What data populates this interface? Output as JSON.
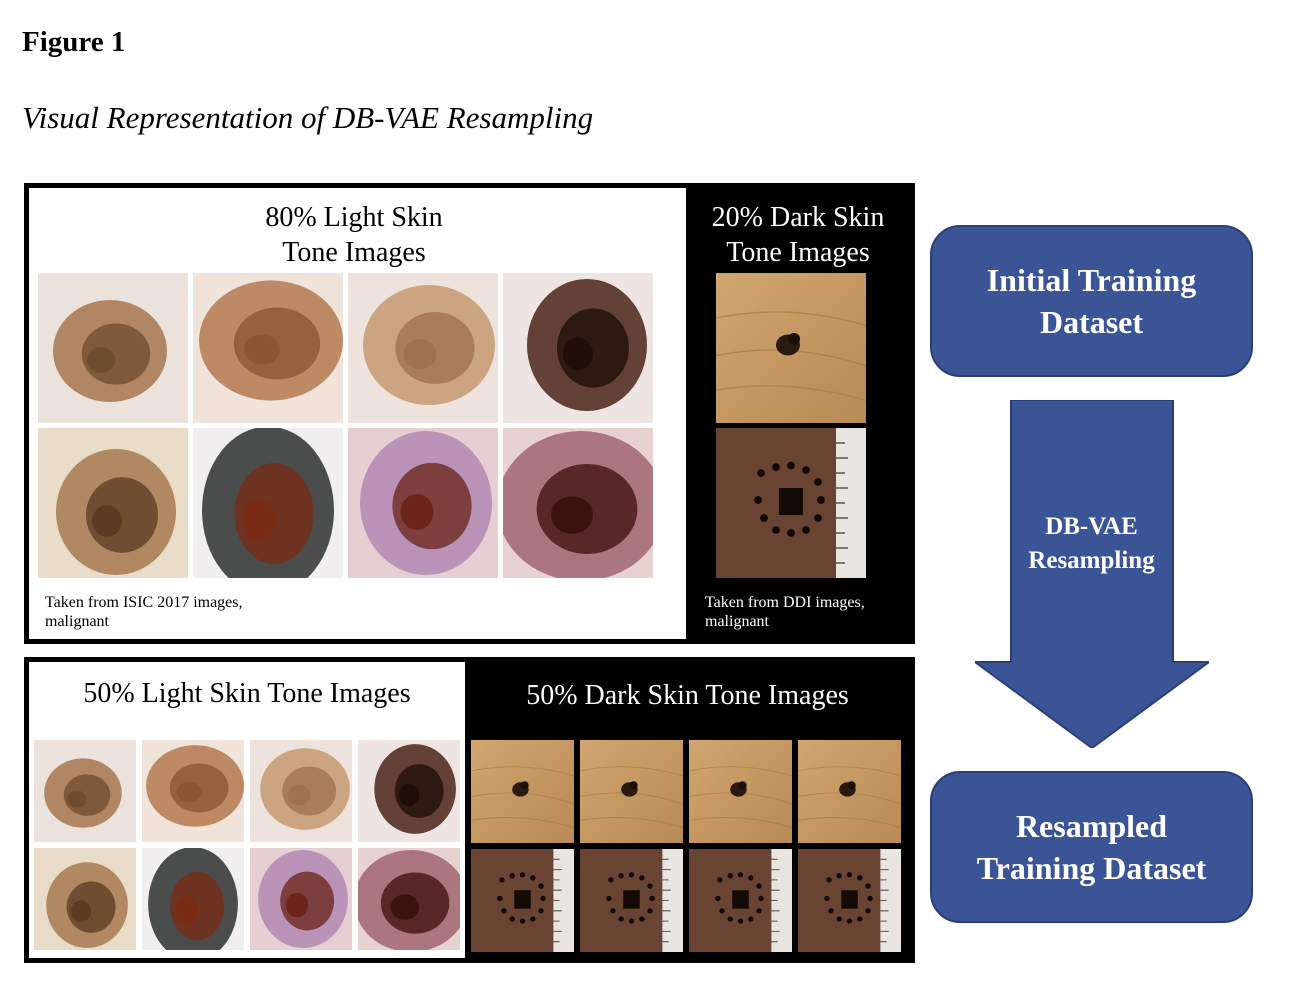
{
  "figure": {
    "label": "Figure 1",
    "caption": "Visual Representation of DB-VAE Resampling"
  },
  "initial_panel": {
    "light_header_line1": "80% Light Skin",
    "light_header_line2": "Tone Images",
    "dark_header_line1": "20% Dark Skin",
    "dark_header_line2": "Tone Images",
    "light_note_line1": "Taken from ISIC 2017 images,",
    "light_note_line2": "malignant",
    "dark_note_line1": "Taken from DDI images,",
    "dark_note_line2": "malignant"
  },
  "resampled_panel": {
    "light_header": "50% Light Skin Tone Images",
    "dark_header": "50% Dark Skin Tone Images"
  },
  "flow": {
    "initial_line1": "Initial Training",
    "initial_line2": "Dataset",
    "arrow_line1": "DB-VAE",
    "arrow_line2": "Resampling",
    "resampled_line1": "Resampled",
    "resampled_line2": "Training Dataset"
  },
  "colors": {
    "flow_blue": "#3a5496",
    "panel_border": "#000000"
  },
  "image_tiles": {
    "light_lesion_icons": [
      "light-lesion-1-icon",
      "light-lesion-2-icon",
      "light-lesion-3-icon",
      "light-lesion-4-icon",
      "light-lesion-5-icon",
      "light-lesion-6-icon",
      "light-lesion-7-icon",
      "light-lesion-8-icon"
    ],
    "dark_lesion_icons": [
      "dark-lesion-1-icon",
      "dark-lesion-2-icon"
    ]
  }
}
